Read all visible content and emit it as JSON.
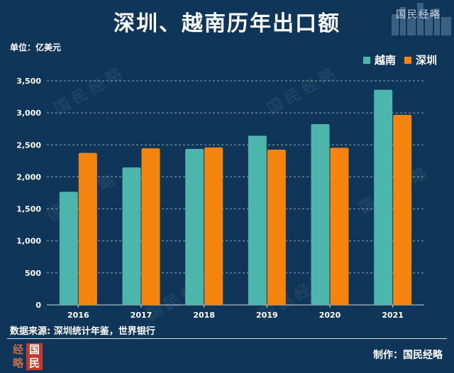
{
  "title": "深圳、越南历年出口额",
  "brand": "国民经略",
  "unit_label": "单位：亿美元",
  "legend": [
    {
      "name": "越南",
      "color": "#4db6ac"
    },
    {
      "name": "深圳",
      "color": "#f5840f"
    }
  ],
  "source": "数据来源: 深圳统计年鉴，世界银行",
  "credit": "制作：国民经略",
  "seal_chars": [
    "经",
    "国",
    "略",
    "民"
  ],
  "watermark": "国民经略",
  "chart_data": {
    "type": "bar",
    "title": "深圳、越南历年出口额",
    "xlabel": "",
    "ylabel": "亿美元",
    "categories": [
      "2016",
      "2017",
      "2018",
      "2019",
      "2020",
      "2021"
    ],
    "series": [
      {
        "name": "越南",
        "color": "#4db6ac",
        "values": [
          1766,
          2147,
          2437,
          2643,
          2824,
          3360
        ]
      },
      {
        "name": "深圳",
        "color": "#f5840f",
        "values": [
          2374,
          2446,
          2460,
          2425,
          2455,
          2969
        ]
      }
    ],
    "ylim": [
      0,
      3500
    ],
    "yticks": [
      0,
      500,
      1000,
      1500,
      2000,
      2500,
      3000,
      3500
    ],
    "ytick_labels": [
      "0",
      "500",
      "1,000",
      "1,500",
      "2,000",
      "2,500",
      "3,000",
      "3,500"
    ],
    "grid": true,
    "legend_position": "top-right"
  }
}
